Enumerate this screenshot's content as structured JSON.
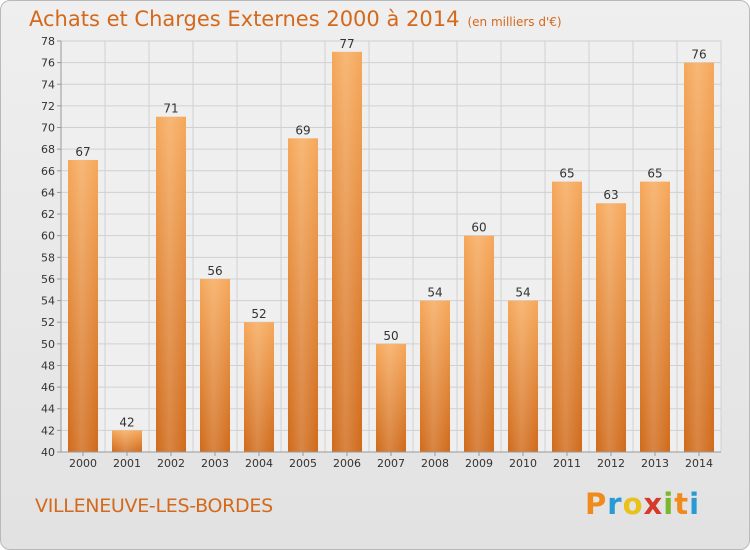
{
  "header": {
    "title": "Achats et Charges Externes 2000 à 2014",
    "subtitle": "(en milliers d'€)"
  },
  "footer": {
    "place": "VILLENEUVE-LES-BORDES",
    "logo_text": "Proxiti"
  },
  "colors": {
    "accent": "#d4691c",
    "bar_light": "#f6a85a",
    "bar_dark": "#d06a1a",
    "logo": [
      "#f08a1c",
      "#2a9ad4",
      "#e8c21a",
      "#d63a2a",
      "#7ab828",
      "#f08a1c",
      "#2a9ad4"
    ]
  },
  "chart_data": {
    "type": "bar",
    "title": "Achats et Charges Externes 2000 à 2014",
    "subtitle": "(en milliers d'€)",
    "categories": [
      "2000",
      "2001",
      "2002",
      "2003",
      "2004",
      "2005",
      "2006",
      "2007",
      "2008",
      "2009",
      "2010",
      "2011",
      "2012",
      "2013",
      "2014"
    ],
    "values": [
      67,
      42,
      71,
      56,
      52,
      69,
      77,
      50,
      54,
      60,
      54,
      65,
      63,
      65,
      76
    ],
    "ylim": [
      40,
      78
    ],
    "yticks": [
      40,
      42,
      44,
      46,
      48,
      50,
      52,
      54,
      56,
      58,
      60,
      62,
      64,
      66,
      68,
      70,
      72,
      74,
      76,
      78
    ],
    "grid": true,
    "legend": "none"
  }
}
